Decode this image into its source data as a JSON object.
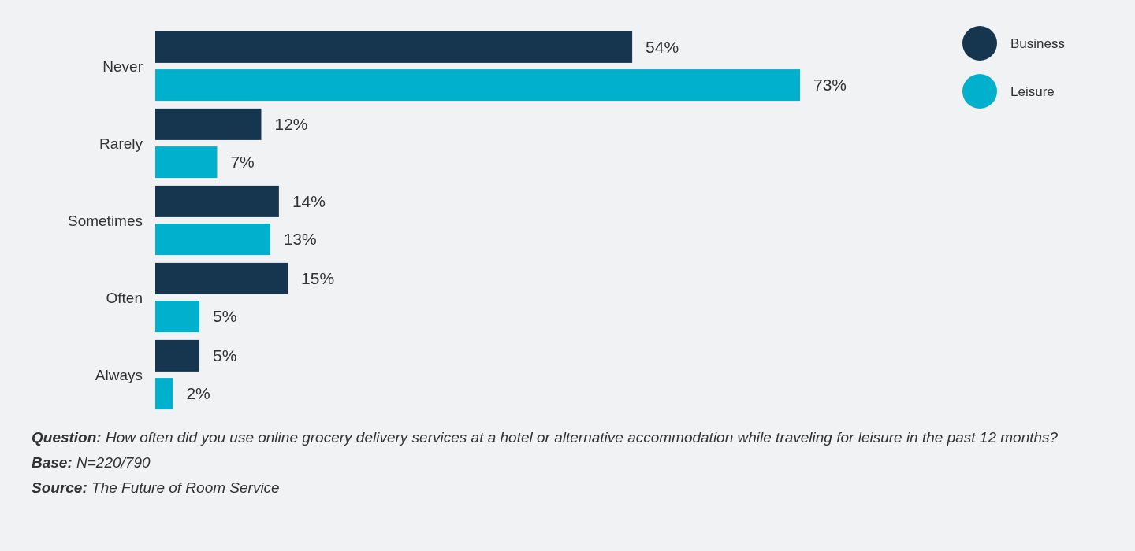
{
  "chart_data": {
    "type": "bar",
    "orientation": "horizontal",
    "categories": [
      "Never",
      "Rarely",
      "Sometimes",
      "Often",
      "Always"
    ],
    "series": [
      {
        "name": "Business",
        "color": "#163650",
        "values": [
          54,
          12,
          14,
          15,
          5
        ],
        "value_labels": [
          "54%",
          "12%",
          "14%",
          "15%",
          "5%"
        ]
      },
      {
        "name": "Leisure",
        "color": "#00b0cc",
        "values": [
          73,
          7,
          13,
          5,
          2
        ],
        "value_labels": [
          "73%",
          "7%",
          "13%",
          "5%",
          "2%"
        ]
      }
    ],
    "legend": "top right",
    "grid": false,
    "annotations": [
      "Question: How often did you use online grocery delivery services at a hotel or alternative accommodation while traveling for leisure in the past 12 months?",
      "Base: N=220/790",
      "Source: The Future of Room Service"
    ]
  }
}
